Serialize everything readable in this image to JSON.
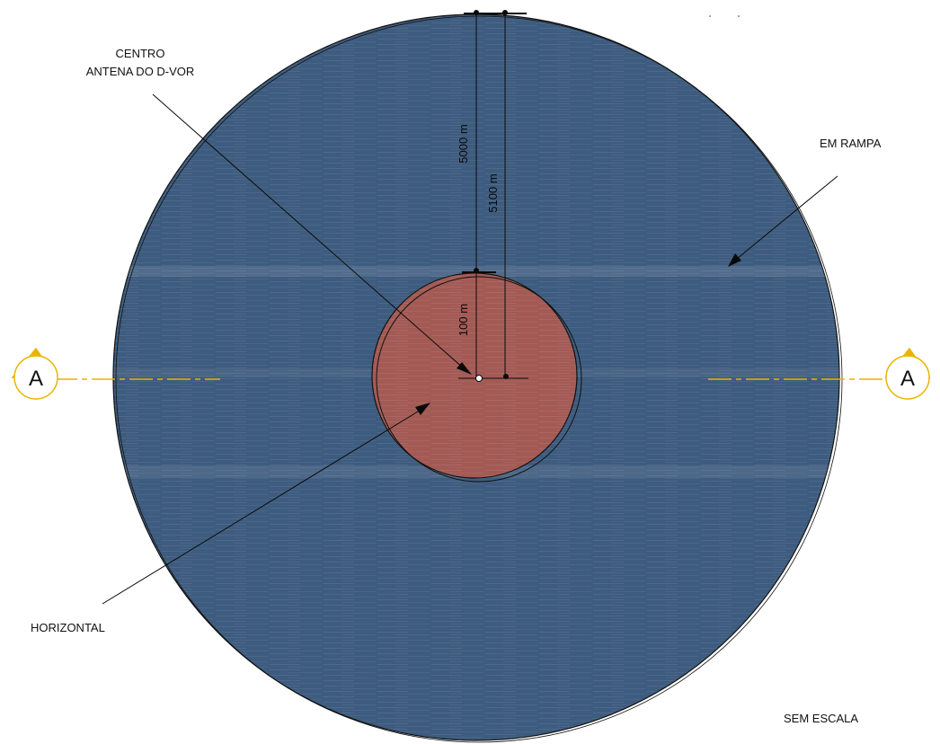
{
  "labels": {
    "center_line1": "CENTRO",
    "center_line2": "ANTENA DO D-VOR",
    "ramp": "EM RAMPA",
    "horizontal": "HORIZONTAL",
    "scale_note": "SEM ESCALA"
  },
  "dimensions": {
    "outer_5000": "5000 m",
    "outer_5100": "5100 m",
    "inner_100": "100 m"
  },
  "section_marks": {
    "left": "A",
    "right": "A"
  },
  "colors": {
    "outer_zone": "#3e5c7f",
    "inner_zone": "#a35a55",
    "section_line": "#e8b400",
    "ink": "#111111"
  }
}
